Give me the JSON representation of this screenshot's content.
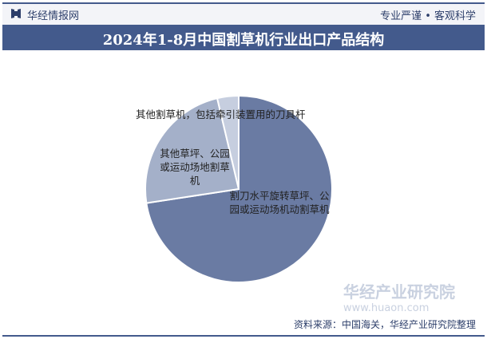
{
  "header": {
    "brand": "华经情报网",
    "slogan": "专业严谨 • 客观科学"
  },
  "chart_data": {
    "type": "pie",
    "title": "2024年1-8月中国割草机行业出口产品结构",
    "categories": [
      "割刀水平旋转草坪、公园或运动场机动割草机",
      "其他草坪、公园或运动场地割草机",
      "其他割草机，包括牵引装置用的刀具杆"
    ],
    "values": [
      72.6,
      23.7,
      3.7
    ],
    "colors": [
      "#6a7ba3",
      "#a4b0c9",
      "#c6cedf"
    ]
  },
  "watermark": "华经产业研究院",
  "watermark_url": "www.huaon.com",
  "source": "资料来源：中国海关，华经产业研究院整理"
}
